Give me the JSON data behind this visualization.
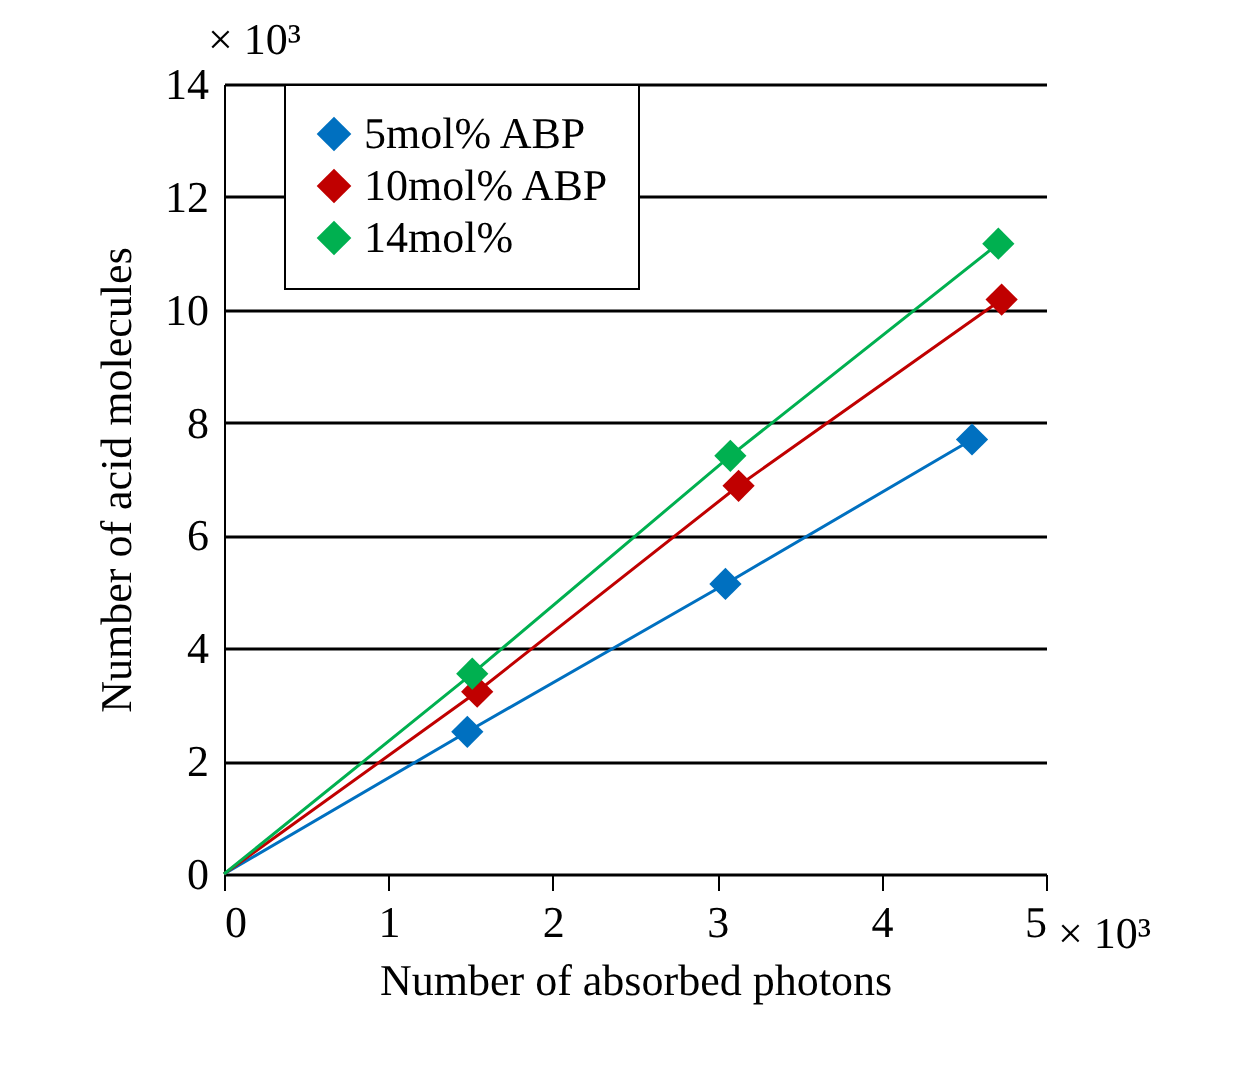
{
  "chart_data": {
    "type": "scatter",
    "xlabel": "Number of absorbed photons",
    "ylabel": "Number of acid molecules",
    "annotations": [
      "× 10³",
      "× 10³"
    ],
    "series": [
      {
        "name": "5mol% ABP",
        "color": "#0070c0",
        "marker": "diamond",
        "x": [
          1.48,
          3.05,
          4.55
        ],
        "values": [
          2.52,
          5.14,
          7.7
        ]
      },
      {
        "name": "10mol% ABP",
        "color": "#c00000",
        "marker": "diamond",
        "x": [
          1.54,
          3.13,
          4.73
        ],
        "values": [
          3.23,
          6.88,
          10.18
        ]
      },
      {
        "name": "14mol%",
        "color": "#00b050",
        "marker": "diamond",
        "x": [
          1.51,
          3.08,
          4.71
        ],
        "values": [
          3.55,
          7.41,
          11.17
        ]
      },
      {
        "color": "#0070c0",
        "type": "line",
        "marker": "none",
        "x": [
          0,
          1.48,
          3.05,
          4.55
        ],
        "values": [
          0,
          2.52,
          5.14,
          7.7
        ]
      },
      {
        "color": "#c00000",
        "type": "line",
        "marker": "none",
        "x": [
          0,
          1.54,
          3.13,
          4.73
        ],
        "values": [
          0,
          3.23,
          6.88,
          10.18
        ]
      },
      {
        "color": "#00b050",
        "type": "line",
        "marker": "none",
        "x": [
          0,
          1.51,
          3.08,
          4.71
        ],
        "values": [
          0,
          3.55,
          7.41,
          11.17
        ]
      }
    ],
    "xlim": [
      0,
      5
    ],
    "xticks": [
      0,
      1,
      2,
      3,
      4,
      5
    ],
    "ylim": [
      0,
      14
    ],
    "yticks": [
      0,
      2,
      4,
      6,
      8,
      10,
      12,
      14
    ],
    "grid": "y",
    "legend": "top left",
    "line_style": "solid"
  }
}
